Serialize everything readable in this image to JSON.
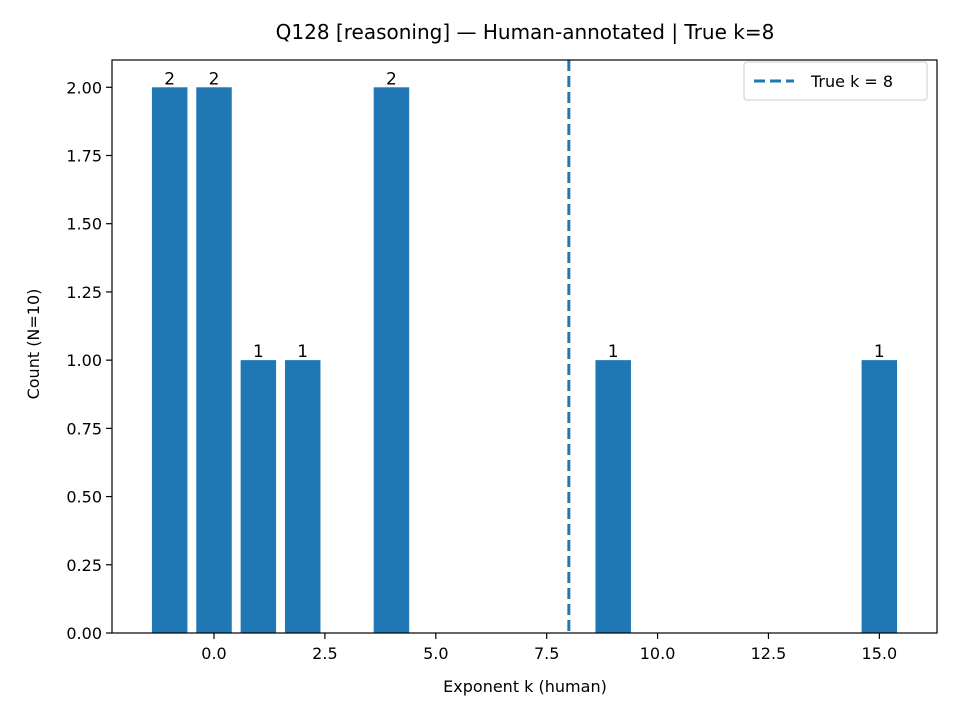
{
  "chart_data": {
    "type": "bar",
    "title": "Q128 [reasoning] — Human-annotated | True k=8",
    "xlabel": "Exponent k (human)",
    "ylabel": "Count (N=10)",
    "bar_color": "#1f77b4",
    "x": [
      -1,
      0,
      1,
      2,
      4,
      9,
      15
    ],
    "values": [
      2,
      2,
      1,
      1,
      2,
      1,
      1
    ],
    "bar_labels": [
      "2",
      "2",
      "1",
      "1",
      "2",
      "1",
      "1"
    ],
    "bar_width": 0.8,
    "xlim": [
      -2.3,
      16.3
    ],
    "ylim": [
      0,
      2.1
    ],
    "xticks": [
      0,
      2.5,
      5,
      7.5,
      10,
      12.5,
      15
    ],
    "xtick_labels": [
      "0.0",
      "2.5",
      "5.0",
      "7.5",
      "10.0",
      "12.5",
      "15.0"
    ],
    "yticks": [
      0,
      0.25,
      0.5,
      0.75,
      1.0,
      1.25,
      1.5,
      1.75,
      2.0
    ],
    "ytick_labels": [
      "0.00",
      "0.25",
      "0.50",
      "0.75",
      "1.00",
      "1.25",
      "1.50",
      "1.75",
      "2.00"
    ],
    "grid": false,
    "reference_line": {
      "x": 8,
      "style": "dashed",
      "color": "#1f77b4",
      "label": "True k = 8"
    },
    "legend": {
      "position": "top-right",
      "entries": [
        "True k = 8"
      ]
    }
  }
}
